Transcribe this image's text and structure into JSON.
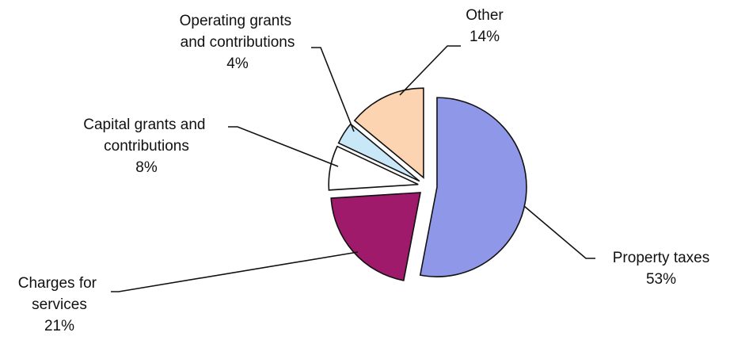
{
  "chart_data": {
    "type": "pie",
    "categories": [
      "Property taxes",
      "Charges for services",
      "Capital grants and contributions",
      "Operating grants and contributions",
      "Other"
    ],
    "values": [
      53,
      21,
      8,
      4,
      14
    ],
    "value_labels": [
      "53%",
      "21%",
      "8%",
      "4%",
      "14%"
    ],
    "colors": [
      "#8f98e8",
      "#a01a6c",
      "#ffffff",
      "#c8e8f8",
      "#fcd4b2"
    ]
  }
}
